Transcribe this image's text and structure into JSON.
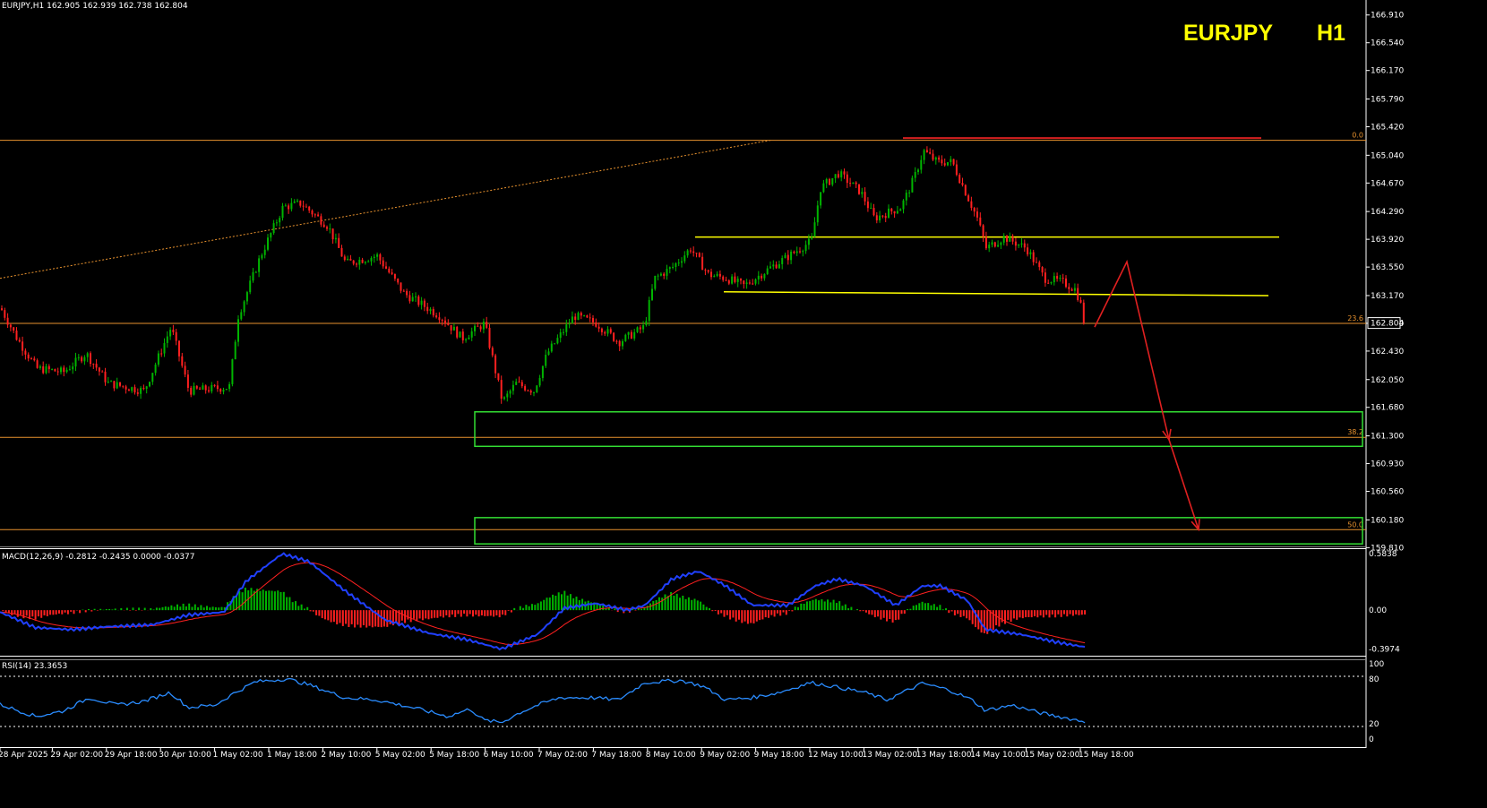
{
  "window": {
    "header": "EURJPY,H1  162.905 162.939 162.738 162.804",
    "symbol": "EURJPY",
    "timeframe": "H1"
  },
  "colors": {
    "background": "#000000",
    "bull": "#00b400",
    "bear": "#ff2020",
    "fib": "#e8922e",
    "level": "#ffff00",
    "resistance": "#d42020",
    "zone": "#33dd33",
    "arrow": "#e02020",
    "macd": "#2040ff",
    "signal": "#ff2020",
    "rsi": "#2a8cff"
  },
  "chart_data": [
    {
      "type": "candlestick",
      "name": "price",
      "ylim": [
        159.85,
        167.05
      ],
      "y_ticks": [
        "166.910",
        "166.540",
        "166.170",
        "165.790",
        "165.420",
        "165.040",
        "164.670",
        "164.290",
        "163.920",
        "163.550",
        "163.170",
        "162.800",
        "162.430",
        "162.050",
        "161.680",
        "161.300",
        "160.930",
        "160.560",
        "160.180",
        "159.810"
      ],
      "current_price": "162.804",
      "x_ticks": [
        "28 Apr 2025",
        "29 Apr 02:00",
        "29 Apr 18:00",
        "30 Apr 10:00",
        "1 May 02:00",
        "1 May 18:00",
        "2 May 10:00",
        "5 May 02:00",
        "5 May 18:00",
        "6 May 10:00",
        "7 May 02:00",
        "7 May 18:00",
        "8 May 10:00",
        "9 May 02:00",
        "9 May 18:00",
        "12 May 10:00",
        "13 May 02:00",
        "13 May 18:00",
        "14 May 10:00",
        "15 May 02:00",
        "15 May 18:00"
      ],
      "keypoints": [
        [
          0,
          163.0
        ],
        [
          18,
          162.6
        ],
        [
          40,
          162.2
        ],
        [
          70,
          162.15
        ],
        [
          95,
          162.4
        ],
        [
          120,
          162.0
        ],
        [
          160,
          161.9
        ],
        [
          190,
          162.75
        ],
        [
          210,
          161.9
        ],
        [
          255,
          161.95
        ],
        [
          265,
          162.9
        ],
        [
          290,
          163.7
        ],
        [
          315,
          164.35
        ],
        [
          335,
          164.4
        ],
        [
          365,
          164.1
        ],
        [
          385,
          163.6
        ],
        [
          420,
          163.7
        ],
        [
          450,
          163.2
        ],
        [
          490,
          162.9
        ],
        [
          515,
          162.6
        ],
        [
          540,
          162.8
        ],
        [
          560,
          161.75
        ],
        [
          575,
          162.0
        ],
        [
          595,
          161.9
        ],
        [
          610,
          162.4
        ],
        [
          640,
          162.9
        ],
        [
          665,
          162.8
        ],
        [
          690,
          162.55
        ],
        [
          718,
          162.75
        ],
        [
          730,
          163.4
        ],
        [
          750,
          163.55
        ],
        [
          770,
          163.8
        ],
        [
          790,
          163.45
        ],
        [
          810,
          163.4
        ],
        [
          830,
          163.3
        ],
        [
          860,
          163.55
        ],
        [
          880,
          163.7
        ],
        [
          905,
          163.9
        ],
        [
          915,
          164.6
        ],
        [
          935,
          164.8
        ],
        [
          960,
          164.55
        ],
        [
          975,
          164.2
        ],
        [
          1005,
          164.35
        ],
        [
          1020,
          164.75
        ],
        [
          1030,
          165.1
        ],
        [
          1045,
          164.95
        ],
        [
          1062,
          164.95
        ],
        [
          1075,
          164.6
        ],
        [
          1090,
          164.2
        ],
        [
          1100,
          163.8
        ],
        [
          1120,
          163.95
        ],
        [
          1145,
          163.8
        ],
        [
          1165,
          163.4
        ],
        [
          1185,
          163.35
        ],
        [
          1200,
          163.25
        ],
        [
          1212,
          162.8
        ]
      ],
      "fibonacci": [
        {
          "label": "0.0",
          "price": 165.24
        },
        {
          "label": "23.6",
          "price": 162.8
        },
        {
          "label": "38.2",
          "price": 161.28
        },
        {
          "label": "50.0",
          "price": 160.05
        }
      ],
      "support_lines": [
        {
          "x1": 776,
          "p1": 163.95,
          "x2": 1428,
          "p2": 163.95
        },
        {
          "x1": 808,
          "p1": 163.22,
          "x2": 1416,
          "p2": 163.17
        }
      ],
      "resistance_line": {
        "x1": 1008,
        "p1": 165.27,
        "x2": 1408,
        "p2": 165.27
      },
      "trendline": {
        "x1": 0,
        "p1": 163.4,
        "x2": 860,
        "p2": 165.24
      },
      "zones": [
        {
          "x1": 530,
          "x2": 1521,
          "top": 161.62,
          "bottom": 161.16
        },
        {
          "x1": 530,
          "x2": 1521,
          "top": 160.21,
          "bottom": 159.86
        }
      ],
      "forecast_path": [
        [
          1222,
          162.75
        ],
        [
          1258,
          163.62
        ],
        [
          1305,
          161.25
        ],
        [
          1338,
          160.05
        ]
      ]
    },
    {
      "type": "macd",
      "label": "MACD(12,26,9) -0.2812 -0.2435 0.0000 -0.0377",
      "ylim": [
        -0.45,
        0.6
      ],
      "y_ticks": [
        "0.5838",
        "0.00",
        "-0.3974"
      ],
      "keypoints": [
        [
          0,
          -0.02
        ],
        [
          40,
          -0.18
        ],
        [
          80,
          -0.2
        ],
        [
          120,
          -0.17
        ],
        [
          170,
          -0.15
        ],
        [
          210,
          -0.05
        ],
        [
          250,
          -0.02
        ],
        [
          275,
          0.3
        ],
        [
          315,
          0.58
        ],
        [
          345,
          0.5
        ],
        [
          385,
          0.2
        ],
        [
          430,
          -0.1
        ],
        [
          480,
          -0.24
        ],
        [
          520,
          -0.3
        ],
        [
          560,
          -0.4
        ],
        [
          600,
          -0.25
        ],
        [
          630,
          0.02
        ],
        [
          665,
          0.07
        ],
        [
          700,
          0.0
        ],
        [
          720,
          0.05
        ],
        [
          750,
          0.32
        ],
        [
          780,
          0.4
        ],
        [
          810,
          0.25
        ],
        [
          840,
          0.05
        ],
        [
          880,
          0.05
        ],
        [
          910,
          0.25
        ],
        [
          935,
          0.32
        ],
        [
          965,
          0.25
        ],
        [
          1000,
          0.05
        ],
        [
          1030,
          0.25
        ],
        [
          1050,
          0.25
        ],
        [
          1080,
          0.1
        ],
        [
          1100,
          -0.2
        ],
        [
          1140,
          -0.25
        ],
        [
          1180,
          -0.33
        ],
        [
          1212,
          -0.38
        ]
      ]
    },
    {
      "type": "rsi",
      "label": "RSI(14) 23.3653",
      "ylim": [
        0,
        100
      ],
      "y_ticks": [
        "100",
        "80",
        "20",
        "0"
      ],
      "keypoints": [
        [
          0,
          46
        ],
        [
          40,
          30
        ],
        [
          70,
          37
        ],
        [
          100,
          55
        ],
        [
          130,
          45
        ],
        [
          160,
          50
        ],
        [
          190,
          62
        ],
        [
          210,
          42
        ],
        [
          240,
          45
        ],
        [
          260,
          60
        ],
        [
          285,
          76
        ],
        [
          320,
          80
        ],
        [
          345,
          72
        ],
        [
          385,
          55
        ],
        [
          420,
          52
        ],
        [
          460,
          42
        ],
        [
          500,
          30
        ],
        [
          525,
          40
        ],
        [
          540,
          25
        ],
        [
          560,
          22
        ],
        [
          580,
          35
        ],
        [
          600,
          45
        ],
        [
          625,
          55
        ],
        [
          660,
          55
        ],
        [
          690,
          52
        ],
        [
          720,
          75
        ],
        [
          760,
          78
        ],
        [
          785,
          70
        ],
        [
          810,
          52
        ],
        [
          840,
          55
        ],
        [
          870,
          62
        ],
        [
          905,
          75
        ],
        [
          930,
          70
        ],
        [
          965,
          62
        ],
        [
          990,
          52
        ],
        [
          1030,
          74
        ],
        [
          1060,
          65
        ],
        [
          1085,
          52
        ],
        [
          1100,
          38
        ],
        [
          1130,
          45
        ],
        [
          1160,
          35
        ],
        [
          1190,
          28
        ],
        [
          1212,
          23
        ]
      ]
    }
  ]
}
